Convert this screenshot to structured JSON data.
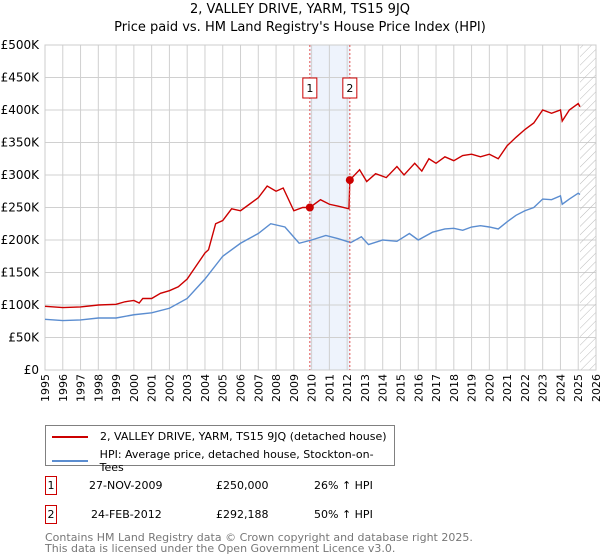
{
  "chart_data": {
    "type": "line",
    "title": "2, VALLEY DRIVE, YARM, TS15 9JQ",
    "subtitle": "Price paid vs. HM Land Registry's House Price Index (HPI)",
    "xlim": [
      1995,
      2026
    ],
    "ylim": [
      0,
      500000
    ],
    "x_ticks": [
      "1995",
      "1996",
      "1997",
      "1998",
      "1999",
      "2000",
      "2001",
      "2002",
      "2003",
      "2004",
      "2005",
      "2006",
      "2007",
      "2008",
      "2009",
      "2010",
      "2011",
      "2012",
      "2013",
      "2014",
      "2015",
      "2016",
      "2017",
      "2018",
      "2019",
      "2020",
      "2021",
      "2022",
      "2023",
      "2024",
      "2025",
      "2026"
    ],
    "y_ticks": [
      {
        "v": 0,
        "label": "£0"
      },
      {
        "v": 50000,
        "label": "£50K"
      },
      {
        "v": 100000,
        "label": "£100K"
      },
      {
        "v": 150000,
        "label": "£150K"
      },
      {
        "v": 200000,
        "label": "£200K"
      },
      {
        "v": 250000,
        "label": "£250K"
      },
      {
        "v": 300000,
        "label": "£300K"
      },
      {
        "v": 350000,
        "label": "£350K"
      },
      {
        "v": 400000,
        "label": "£400K"
      },
      {
        "v": 450000,
        "label": "£450K"
      },
      {
        "v": 500000,
        "label": "£500K"
      }
    ],
    "grid": true,
    "shaded_range": [
      2009.9,
      2012.15
    ],
    "forecast_hatch_from": 2025.1,
    "series": [
      {
        "name": "2, VALLEY DRIVE, YARM, TS15 9JQ (detached house)",
        "color": "#cc0000",
        "x": [
          1995,
          1996,
          1997,
          1998,
          1999,
          1999.5,
          2000,
          2000.3,
          2000.5,
          2001,
          2001.5,
          2002,
          2002.5,
          2003,
          2003.5,
          2004,
          2004.2,
          2004.6,
          2005,
          2005.5,
          2006,
          2006.5,
          2007,
          2007.5,
          2008,
          2008.4,
          2009,
          2009.5,
          2009.9,
          2010.5,
          2011,
          2011.5,
          2012.1,
          2012.15,
          2012.7,
          2013.1,
          2013.6,
          2014.2,
          2014.8,
          2015.2,
          2015.8,
          2016.2,
          2016.6,
          2017,
          2017.5,
          2018,
          2018.5,
          2019,
          2019.5,
          2020,
          2020.5,
          2021,
          2021.5,
          2022,
          2022.5,
          2023,
          2023.5,
          2024,
          2024.1,
          2024.5,
          2025,
          2025.1
        ],
        "y": [
          98000,
          96000,
          97000,
          100000,
          101000,
          105000,
          107000,
          103000,
          110000,
          110000,
          118000,
          122000,
          128000,
          140000,
          160000,
          180000,
          185000,
          225000,
          230000,
          248000,
          245000,
          255000,
          265000,
          283000,
          275000,
          280000,
          245000,
          250000,
          250000,
          262000,
          255000,
          252000,
          248000,
          292188,
          308000,
          290000,
          302000,
          296000,
          313000,
          300000,
          318000,
          306000,
          325000,
          318000,
          328000,
          322000,
          330000,
          332000,
          328000,
          332000,
          325000,
          345000,
          358000,
          370000,
          380000,
          400000,
          395000,
          400000,
          383000,
          400000,
          410000,
          405000
        ]
      },
      {
        "name": "HPI: Average price, detached house, Stockton-on-Tees",
        "color": "#5b8dd0",
        "x": [
          1995,
          1996,
          1997,
          1998,
          1999,
          2000,
          2001,
          2002,
          2003,
          2004,
          2005,
          2006,
          2007,
          2007.7,
          2008.5,
          2009.3,
          2010,
          2010.8,
          2011.5,
          2012.2,
          2012.8,
          2013.2,
          2014,
          2014.8,
          2015.5,
          2016,
          2016.8,
          2017.5,
          2018,
          2018.5,
          2019,
          2019.5,
          2020,
          2020.5,
          2021,
          2021.5,
          2022,
          2022.5,
          2023,
          2023.5,
          2024,
          2024.1,
          2024.5,
          2025,
          2025.1
        ],
        "y": [
          78000,
          76000,
          77000,
          80000,
          80000,
          85000,
          88000,
          95000,
          110000,
          140000,
          175000,
          195000,
          210000,
          225000,
          220000,
          195000,
          200000,
          207000,
          202000,
          196000,
          205000,
          193000,
          200000,
          198000,
          210000,
          200000,
          212000,
          217000,
          218000,
          215000,
          220000,
          222000,
          220000,
          217000,
          228000,
          238000,
          245000,
          250000,
          263000,
          262000,
          268000,
          255000,
          263000,
          272000,
          270000
        ]
      }
    ],
    "sales": [
      {
        "label": "1",
        "x": 2009.9,
        "y": 250000
      },
      {
        "label": "2",
        "x": 2012.15,
        "y": 292188
      }
    ]
  },
  "table": [
    {
      "num": "1",
      "date": "27-NOV-2009",
      "price": "£250,000",
      "hpi": "26% ↑ HPI"
    },
    {
      "num": "2",
      "date": "24-FEB-2012",
      "price": "£292,188",
      "hpi": "50% ↑ HPI"
    }
  ],
  "footer": [
    "Contains HM Land Registry data © Crown copyright and database right 2025.",
    "This data is licensed under the Open Government Licence v3.0."
  ]
}
